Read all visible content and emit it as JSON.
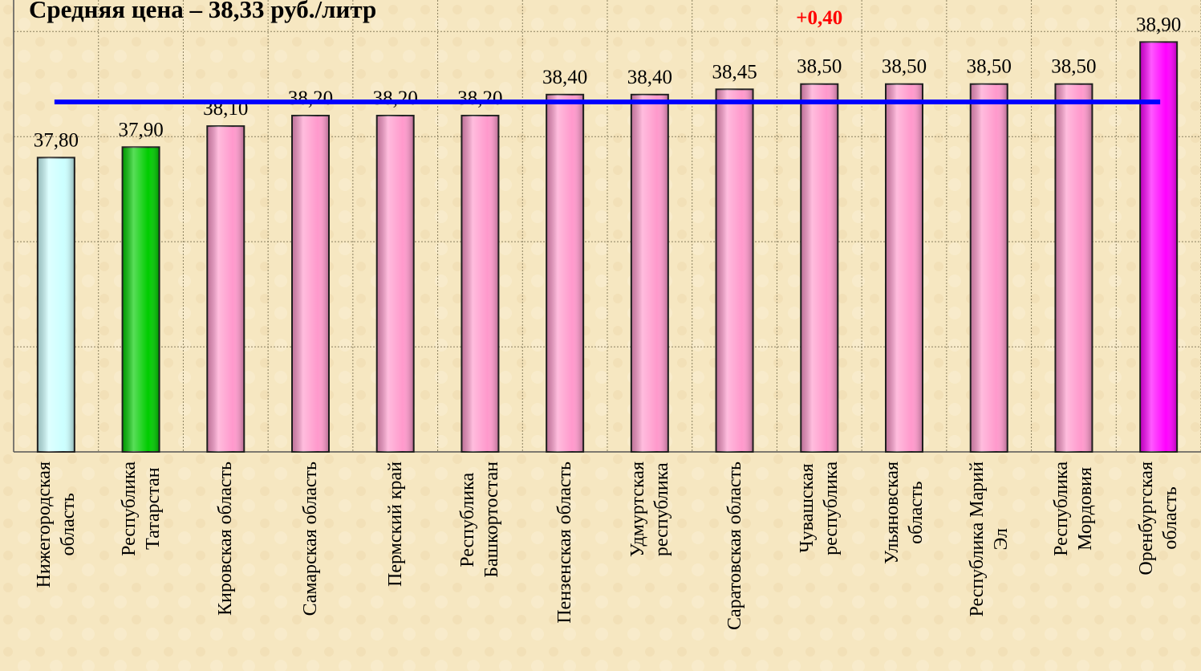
{
  "chart_data": {
    "type": "bar",
    "title": "Средняя цена – 38,33 руб./литр",
    "categories": [
      "Нижегородская\nобласть",
      "Республика\nТатарстан",
      "Кировская область",
      "Самарская область",
      "Пермский край",
      "Республика\nБашкортостан",
      "Пензенская область",
      "Удмуртская\nреспублика",
      "Саратовская область",
      "Чувашская\nреспублика",
      "Ульяновская\nобласть",
      "Республика Марий\nЭл",
      "Республика\nМордовия",
      "Оренбургская\nобласть"
    ],
    "series": [
      {
        "colors": [
          "#ccffff",
          "#00cc00",
          "#ff99cc",
          "#ff99cc",
          "#ff99cc",
          "#ff99cc",
          "#ff99cc",
          "#ff99cc",
          "#ff99cc",
          "#ff99cc",
          "#ff99cc",
          "#ff99cc",
          "#ff99cc",
          "#ff00ff"
        ],
        "values": [
          37.8,
          37.9,
          38.1,
          38.2,
          38.2,
          38.2,
          38.4,
          38.4,
          38.45,
          38.5,
          38.5,
          38.5,
          38.5,
          38.9
        ],
        "value_labels": [
          "37,80",
          "37,90",
          "38,10",
          "38,20",
          "38,20",
          "38,20",
          "38,40",
          "38,40",
          "38,45",
          "38,50",
          "38,50",
          "38,50",
          "38,50",
          "38,90"
        ]
      }
    ],
    "average": {
      "value": 38.33,
      "color": "#0000ff"
    },
    "annotation": {
      "text": "+0,40",
      "category": 9,
      "color": "#ff0000"
    },
    "ylim": [
      35,
      39.3
    ],
    "yticks": [
      35,
      36,
      37,
      38,
      39
    ],
    "grid": true
  }
}
